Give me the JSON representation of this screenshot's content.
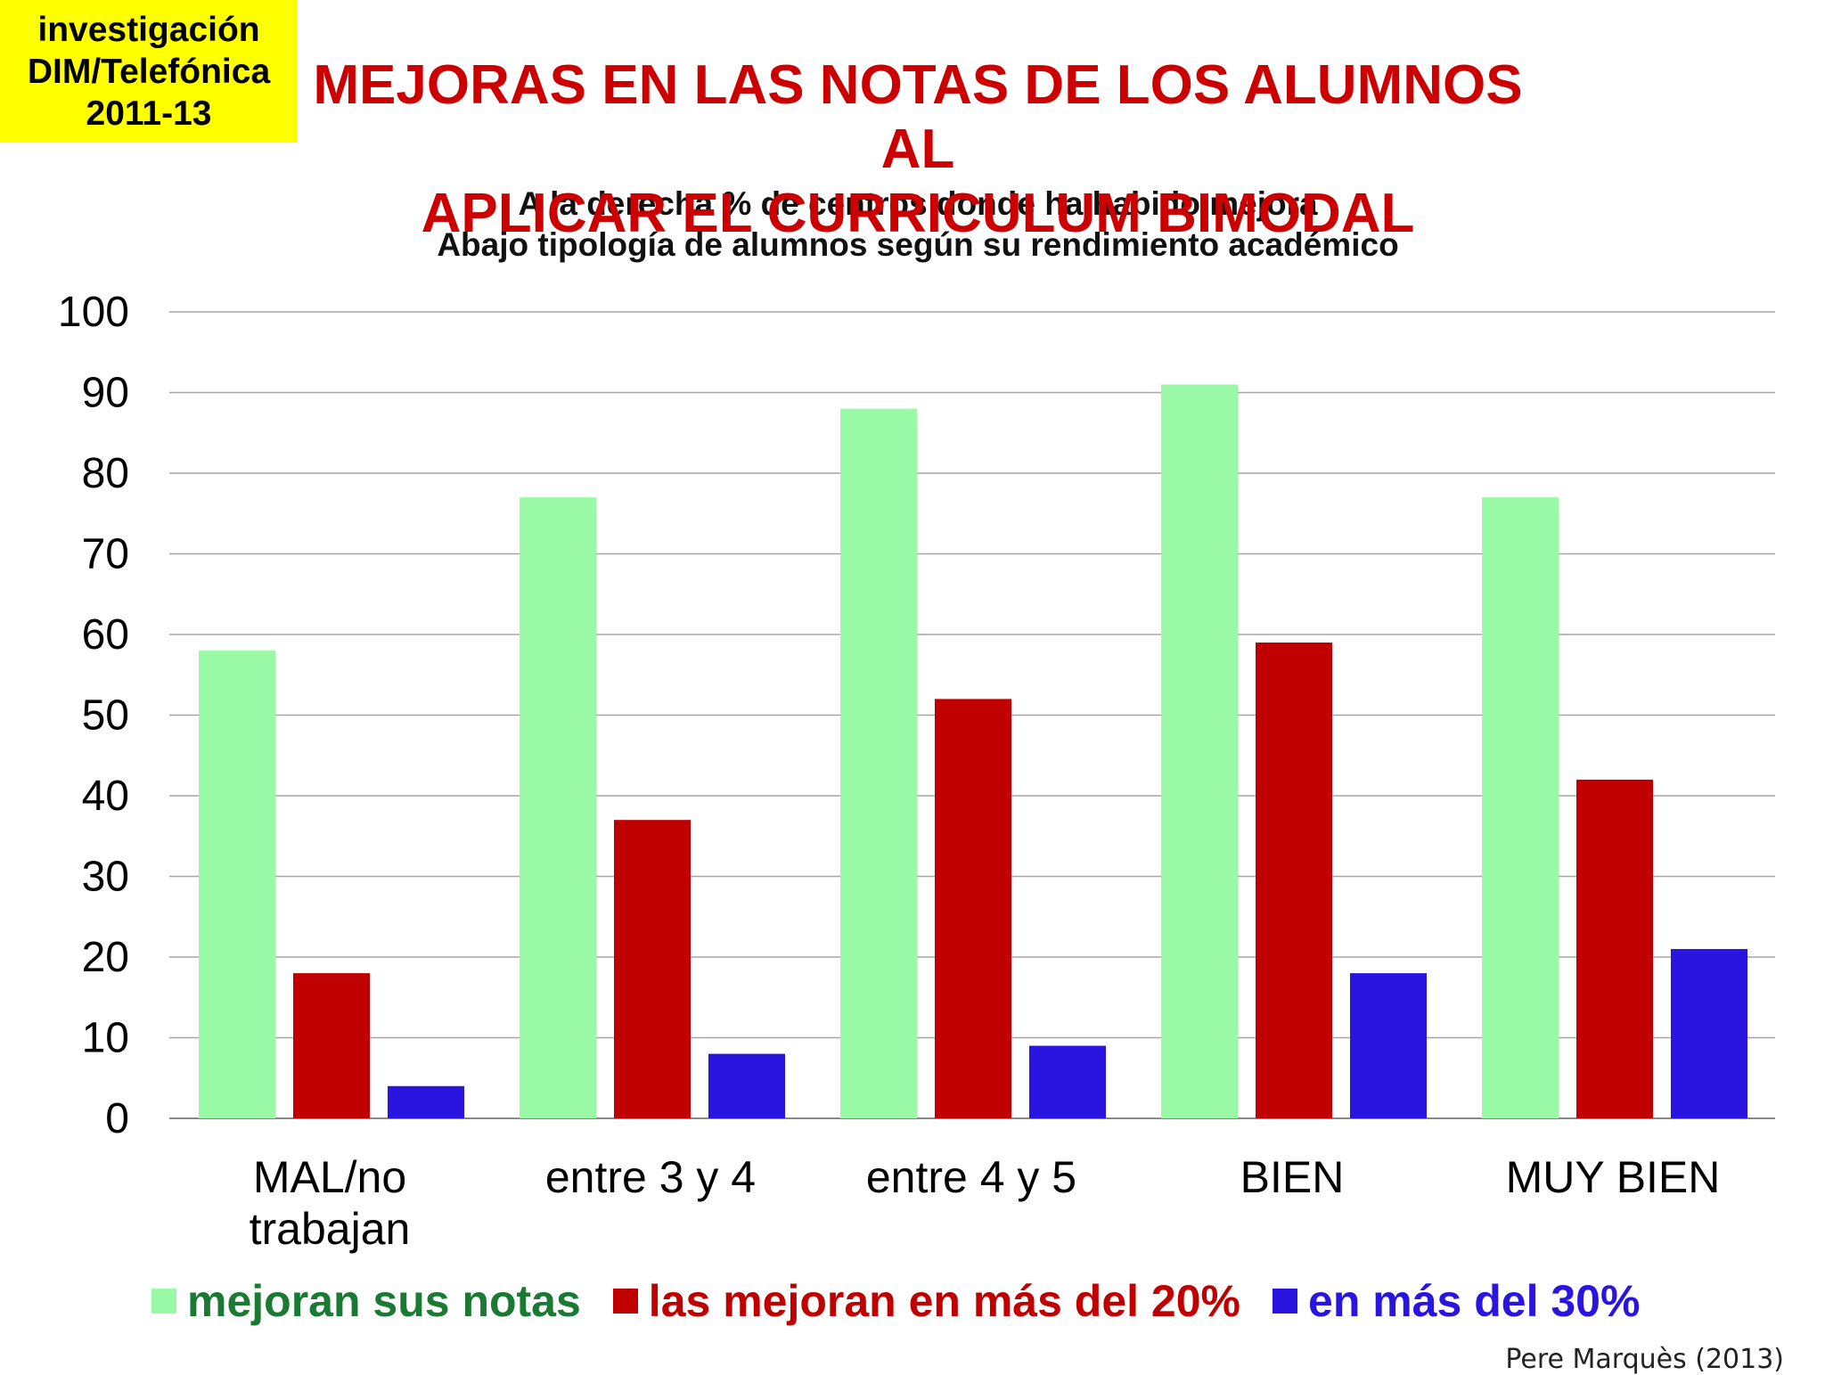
{
  "badge": {
    "line1": "investigación",
    "line2": "DIM/Telefónica",
    "line3": "2011-13"
  },
  "header": {
    "title_line1": "MEJORAS EN LAS NOTAS DE LOS ALUMNOS AL",
    "title_line2": "APLICAR EL CURRICULUM BIMODAL",
    "subtitle_line1": "A la derecha % de centros donde ha habido mejora",
    "subtitle_line2": "Abajo tipología de alumnos según su rendimiento académico"
  },
  "credit": "Pere Marquès (2013)",
  "chart_data": {
    "type": "bar",
    "categories": [
      "MAL/no trabajan",
      "entre 3 y 4",
      "entre 4 y 5",
      "BIEN",
      "MUY BIEN"
    ],
    "series": [
      {
        "name": "mejoran sus notas",
        "values": [
          58,
          77,
          88,
          91,
          77
        ],
        "color": "#99f9a6",
        "legend_text_color": "#1a7a33"
      },
      {
        "name": "las mejoran en más del 20%",
        "values": [
          18,
          37,
          52,
          59,
          42
        ],
        "color": "#c00000",
        "legend_text_color": "#c00000"
      },
      {
        "name": "en más del 30%",
        "values": [
          4,
          8,
          9,
          18,
          21
        ],
        "color": "#2a14e0",
        "legend_text_color": "#2a14e0"
      }
    ],
    "ylim": [
      0,
      100
    ],
    "yticks": [
      0,
      10,
      20,
      30,
      40,
      50,
      60,
      70,
      80,
      90,
      100
    ],
    "grid": true,
    "legend_position": "bottom"
  }
}
